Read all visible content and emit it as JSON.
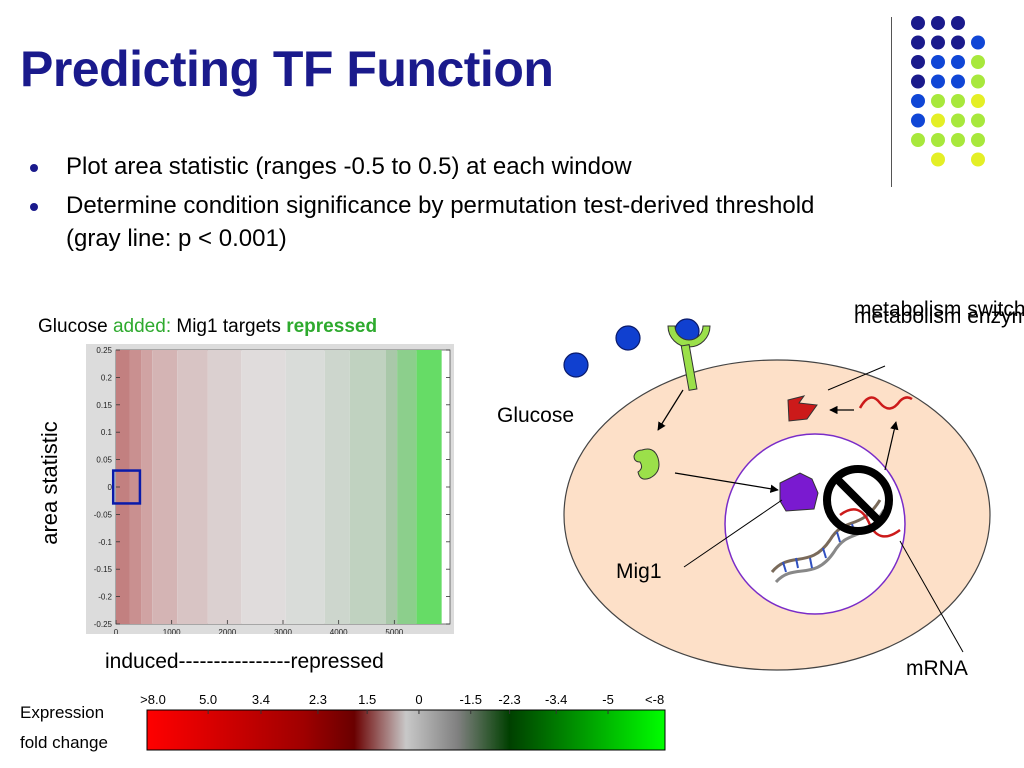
{
  "slide": {
    "title": "Predicting TF Function",
    "bullets": [
      "Plot area statistic (ranges -0.5 to 0.5) at each window",
      "Determine condition significance by permutation test-derived threshold (gray line: p < 0.001)"
    ]
  },
  "plot": {
    "title_parts": {
      "a": "Glucose ",
      "b": "added:",
      "c": " Mig1 targets ",
      "d": "repressed"
    },
    "ylabel": "area statistic",
    "xlabel": "induced----------------repressed",
    "colors": {
      "green_text": "#2eaa2e",
      "title_blue": "#1a1a8c",
      "marker": "#0a1aaa"
    }
  },
  "chart_data": {
    "type": "heatmap",
    "title": "",
    "xlabel": "",
    "ylabel": "",
    "xlim": [
      0,
      6000
    ],
    "ylim": [
      -0.25,
      0.25
    ],
    "x_ticks": [
      "0",
      "1000",
      "2000",
      "3000",
      "4000",
      "5000"
    ],
    "y_ticks": [
      "0.25",
      "0.2",
      "0.15",
      "0.1",
      "0.05",
      "0",
      "-0.05",
      "-0.1",
      "-0.15",
      "-0.2",
      "-0.25"
    ],
    "bands": [
      {
        "x0": 0,
        "x1": 250,
        "color": "#c28080"
      },
      {
        "x0": 250,
        "x1": 450,
        "color": "#c99090"
      },
      {
        "x0": 450,
        "x1": 650,
        "color": "#d0a3a3"
      },
      {
        "x0": 650,
        "x1": 1100,
        "color": "#d4b4b4"
      },
      {
        "x0": 1100,
        "x1": 1650,
        "color": "#d8c4c4"
      },
      {
        "x0": 1650,
        "x1": 2250,
        "color": "#dbd0d0"
      },
      {
        "x0": 2250,
        "x1": 3050,
        "color": "#e0dcdc"
      },
      {
        "x0": 3050,
        "x1": 3750,
        "color": "#d9dcd9"
      },
      {
        "x0": 3750,
        "x1": 4200,
        "color": "#cdd6cd"
      },
      {
        "x0": 4200,
        "x1": 4850,
        "color": "#c0d2c0"
      },
      {
        "x0": 4850,
        "x1": 5050,
        "color": "#a9c8a9"
      },
      {
        "x0": 5050,
        "x1": 5400,
        "color": "#8ccf8c"
      },
      {
        "x0": 5400,
        "x1": 5850,
        "color": "#66dc66"
      }
    ],
    "highlight_box": {
      "x0": -50,
      "x1": 430,
      "y0": -0.03,
      "y1": 0.02
    }
  },
  "colorbar": {
    "label_line1": "Expression",
    "label_line2": "fold change",
    "ticks": [
      ">8.0",
      "5.0",
      "3.4",
      "2.3",
      "1.5",
      "0",
      "-1.5",
      "-2.3",
      "-3.4",
      "-5",
      "<-8"
    ],
    "stops": [
      "#ff0000",
      "#e00000",
      "#c00000",
      "#a00000",
      "#6a0000",
      "#c8c8c8",
      "#808080",
      "#004000",
      "#008000",
      "#00c000",
      "#00ff00"
    ]
  },
  "diagram": {
    "labels": {
      "metabolism_enzyme": "metabolism enzyme",
      "metabolism_switch": "metabolism switch",
      "glucose": "Glucose",
      "mig1": "Mig1",
      "mrna": "mRNA"
    },
    "colors": {
      "cell": "#fde0c8",
      "nucleus_border": "#7a2cc8",
      "glucose_dot": "#1040d0",
      "receptor": "#9be04a",
      "mig1_protein": "#7a1ad0",
      "enzyme": "#cc1a1a",
      "mrna": "#cc1a1a"
    }
  },
  "decor": {
    "dot_colors": [
      "#1a1a8c",
      "#1046d6",
      "#a8e83c",
      "#e4ef26"
    ]
  }
}
